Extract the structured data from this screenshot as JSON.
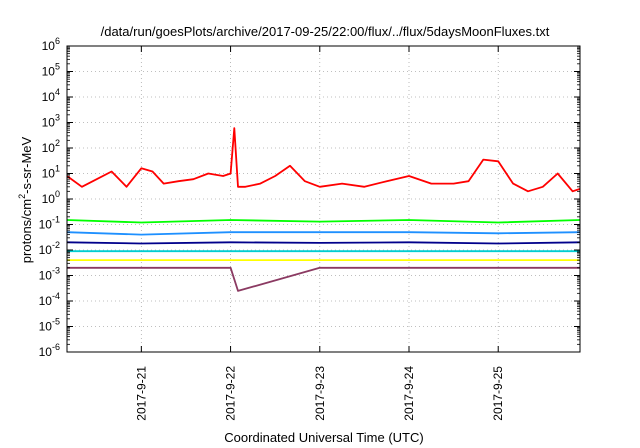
{
  "chart_data": {
    "type": "line",
    "title": "/data/run/goesPlots/archive/2017-09-25/22:00/flux/../flux/5daysMoonFluxes.txt",
    "xlabel": "Coordinated Universal Time (UTC)",
    "ylabel": {
      "prefix": "protons/cm",
      "superscript": "2",
      "suffix": "-s-sr-MeV"
    },
    "y_scale": "log",
    "ylim_exponents": [
      -6,
      6
    ],
    "y_tick_exponents": [
      -6,
      -5,
      -4,
      -3,
      -2,
      -1,
      0,
      1,
      2,
      3,
      4,
      5,
      6
    ],
    "y_tick_base": "10",
    "xlim": [
      "2017-09-20 04:00",
      "2017-09-25 22:00"
    ],
    "x_ticks": [
      "2017-9-21",
      "2017-9-22",
      "2017-9-23",
      "2017-9-24",
      "2017-9-25"
    ],
    "x_tick_values": [
      "2017-09-21 00:00",
      "2017-09-22 00:00",
      "2017-09-23 00:00",
      "2017-09-24 00:00",
      "2017-09-25 00:00"
    ],
    "grid": "dotted",
    "legend": "none",
    "series": [
      {
        "color": "#ff0000",
        "x": [
          "2017-09-20 04:00",
          "2017-09-20 08:00",
          "2017-09-20 12:00",
          "2017-09-20 16:00",
          "2017-09-20 20:00",
          "2017-09-21 00:00",
          "2017-09-21 03:00",
          "2017-09-21 06:00",
          "2017-09-21 10:00",
          "2017-09-21 14:00",
          "2017-09-21 18:00",
          "2017-09-21 22:00",
          "2017-09-22 00:00",
          "2017-09-22 01:00",
          "2017-09-22 02:00",
          "2017-09-22 04:00",
          "2017-09-22 08:00",
          "2017-09-22 12:00",
          "2017-09-22 16:00",
          "2017-09-22 20:00",
          "2017-09-23 00:00",
          "2017-09-23 06:00",
          "2017-09-23 12:00",
          "2017-09-23 18:00",
          "2017-09-24 00:00",
          "2017-09-24 06:00",
          "2017-09-24 12:00",
          "2017-09-24 16:00",
          "2017-09-24 20:00",
          "2017-09-25 00:00",
          "2017-09-25 04:00",
          "2017-09-25 08:00",
          "2017-09-25 12:00",
          "2017-09-25 16:00",
          "2017-09-25 20:00",
          "2017-09-25 22:00"
        ],
        "y": [
          8,
          3,
          6,
          12,
          3,
          16,
          12,
          4,
          5,
          6,
          10,
          8,
          10,
          600,
          3,
          3,
          4,
          8,
          20,
          5,
          3,
          4,
          3,
          5,
          8,
          4,
          4,
          5,
          35,
          30,
          4,
          2,
          3,
          10,
          2,
          2.5
        ]
      },
      {
        "color": "#00ff00",
        "x": [
          "2017-09-20 04:00",
          "2017-09-21 00:00",
          "2017-09-22 00:00",
          "2017-09-23 00:00",
          "2017-09-24 00:00",
          "2017-09-25 00:00",
          "2017-09-25 22:00"
        ],
        "y": [
          0.15,
          0.12,
          0.15,
          0.13,
          0.15,
          0.12,
          0.15
        ]
      },
      {
        "color": "#1e90ff",
        "x": [
          "2017-09-20 04:00",
          "2017-09-21 00:00",
          "2017-09-22 00:00",
          "2017-09-23 00:00",
          "2017-09-24 00:00",
          "2017-09-25 00:00",
          "2017-09-25 22:00"
        ],
        "y": [
          0.05,
          0.04,
          0.05,
          0.05,
          0.05,
          0.045,
          0.05
        ]
      },
      {
        "color": "#00008b",
        "x": [
          "2017-09-20 04:00",
          "2017-09-21 00:00",
          "2017-09-22 00:00",
          "2017-09-23 00:00",
          "2017-09-24 00:00",
          "2017-09-25 00:00",
          "2017-09-25 22:00"
        ],
        "y": [
          0.02,
          0.018,
          0.02,
          0.019,
          0.02,
          0.018,
          0.02
        ]
      },
      {
        "color": "#00ced1",
        "x": [
          "2017-09-20 04:00",
          "2017-09-21 00:00",
          "2017-09-22 00:00",
          "2017-09-23 00:00",
          "2017-09-24 00:00",
          "2017-09-25 00:00",
          "2017-09-25 22:00"
        ],
        "y": [
          0.009,
          0.009,
          0.009,
          0.009,
          0.009,
          0.009,
          0.009
        ]
      },
      {
        "color": "#ffff00",
        "x": [
          "2017-09-20 04:00",
          "2017-09-21 00:00",
          "2017-09-22 00:00",
          "2017-09-23 00:00",
          "2017-09-24 00:00",
          "2017-09-25 00:00",
          "2017-09-25 22:00"
        ],
        "y": [
          0.004,
          0.004,
          0.004,
          0.004,
          0.004,
          0.004,
          0.004
        ]
      },
      {
        "color": "#8b3a62",
        "x": [
          "2017-09-20 04:00",
          "2017-09-21 00:00",
          "2017-09-22 00:00",
          "2017-09-22 02:00",
          "2017-09-23 00:00",
          "2017-09-24 00:00",
          "2017-09-25 00:00",
          "2017-09-25 22:00"
        ],
        "y": [
          0.002,
          0.002,
          0.002,
          0.00025,
          0.002,
          0.002,
          0.002,
          0.002
        ]
      }
    ]
  }
}
